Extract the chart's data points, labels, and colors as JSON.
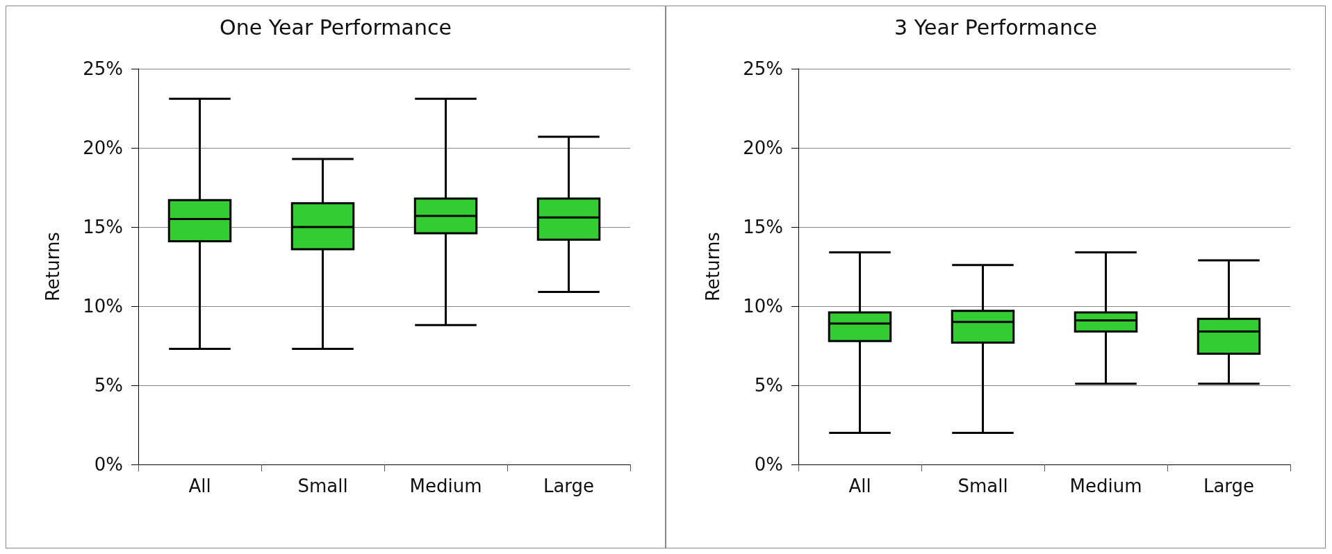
{
  "chart_data": [
    {
      "type": "box",
      "title": "One Year Performance",
      "ylabel": "Returns",
      "categories": [
        "All",
        "Small",
        "Medium",
        "Large"
      ],
      "color": "#33cc33",
      "ylim": [
        0,
        25
      ],
      "yticks": [
        {
          "value": 0,
          "label": "0%"
        },
        {
          "value": 5,
          "label": "5%"
        },
        {
          "value": 10,
          "label": "10%"
        },
        {
          "value": 15,
          "label": "15%"
        },
        {
          "value": 20,
          "label": "20%"
        },
        {
          "value": 25,
          "label": "25%"
        }
      ],
      "grid": "y",
      "boxes": [
        {
          "low": 7.3,
          "q1": 14.1,
          "median": 15.5,
          "q3": 16.7,
          "high": 23.1
        },
        {
          "low": 7.3,
          "q1": 13.6,
          "median": 15.0,
          "q3": 16.5,
          "high": 19.3
        },
        {
          "low": 8.8,
          "q1": 14.6,
          "median": 15.7,
          "q3": 16.8,
          "high": 23.1
        },
        {
          "low": 10.9,
          "q1": 14.2,
          "median": 15.6,
          "q3": 16.8,
          "high": 20.7
        }
      ]
    },
    {
      "type": "box",
      "title": "3 Year Performance",
      "ylabel": "Returns",
      "categories": [
        "All",
        "Small",
        "Medium",
        "Large"
      ],
      "color": "#33cc33",
      "ylim": [
        0,
        25
      ],
      "yticks": [
        {
          "value": 0,
          "label": "0%"
        },
        {
          "value": 5,
          "label": "5%"
        },
        {
          "value": 10,
          "label": "10%"
        },
        {
          "value": 15,
          "label": "15%"
        },
        {
          "value": 20,
          "label": "20%"
        },
        {
          "value": 25,
          "label": "25%"
        }
      ],
      "grid": "y",
      "boxes": [
        {
          "low": 2.0,
          "q1": 7.8,
          "median": 8.9,
          "q3": 9.6,
          "high": 13.4
        },
        {
          "low": 2.0,
          "q1": 7.7,
          "median": 9.0,
          "q3": 9.7,
          "high": 12.6
        },
        {
          "low": 5.1,
          "q1": 8.4,
          "median": 9.1,
          "q3": 9.6,
          "high": 13.4
        },
        {
          "low": 5.1,
          "q1": 7.0,
          "median": 8.4,
          "q3": 9.2,
          "high": 12.9
        }
      ]
    }
  ]
}
